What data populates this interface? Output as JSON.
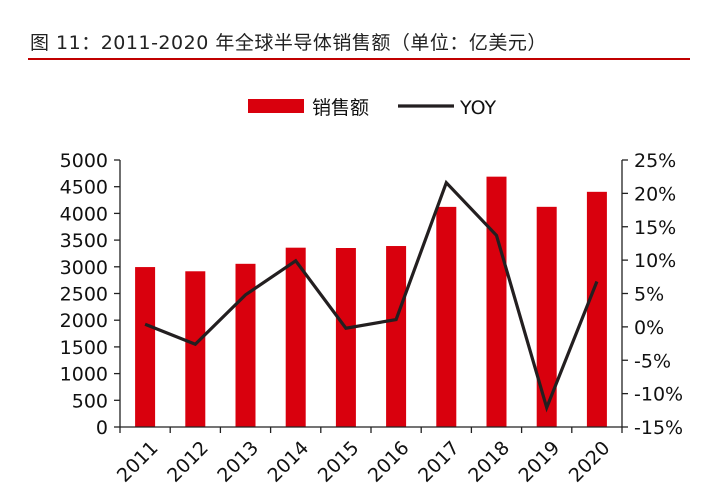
{
  "figure": {
    "title": "图 11：2011-2020 年全球半导体销售额（单位：亿美元）"
  },
  "colors": {
    "bar": "#d9000d",
    "line": "#231f20",
    "rule": "#c00000"
  },
  "chart_data": {
    "type": "bar+line",
    "categories": [
      "2011",
      "2012",
      "2013",
      "2014",
      "2015",
      "2016",
      "2017",
      "2018",
      "2019",
      "2020"
    ],
    "series": [
      {
        "name": "销售额",
        "type": "bar",
        "axis": "left",
        "values": [
          2995,
          2916,
          3056,
          3358,
          3352,
          3389,
          4122,
          4688,
          4123,
          4404
        ]
      },
      {
        "name": "YOY",
        "type": "line",
        "axis": "right",
        "values": [
          0.004,
          -0.026,
          0.048,
          0.099,
          -0.002,
          0.011,
          0.216,
          0.137,
          -0.121,
          0.068
        ]
      }
    ],
    "y_left": {
      "min": 0,
      "max": 5000,
      "step": 500,
      "ticks": [
        "0",
        "500",
        "1000",
        "1500",
        "2000",
        "2500",
        "3000",
        "3500",
        "4000",
        "4500",
        "5000"
      ]
    },
    "y_right": {
      "min": -0.15,
      "max": 0.25,
      "step": 0.05,
      "ticks": [
        "-15%",
        "-10%",
        "-5%",
        "0%",
        "5%",
        "10%",
        "15%",
        "20%",
        "25%"
      ]
    },
    "legend": {
      "position": "top",
      "items": [
        "销售额",
        "YOY"
      ]
    },
    "grid": false
  }
}
